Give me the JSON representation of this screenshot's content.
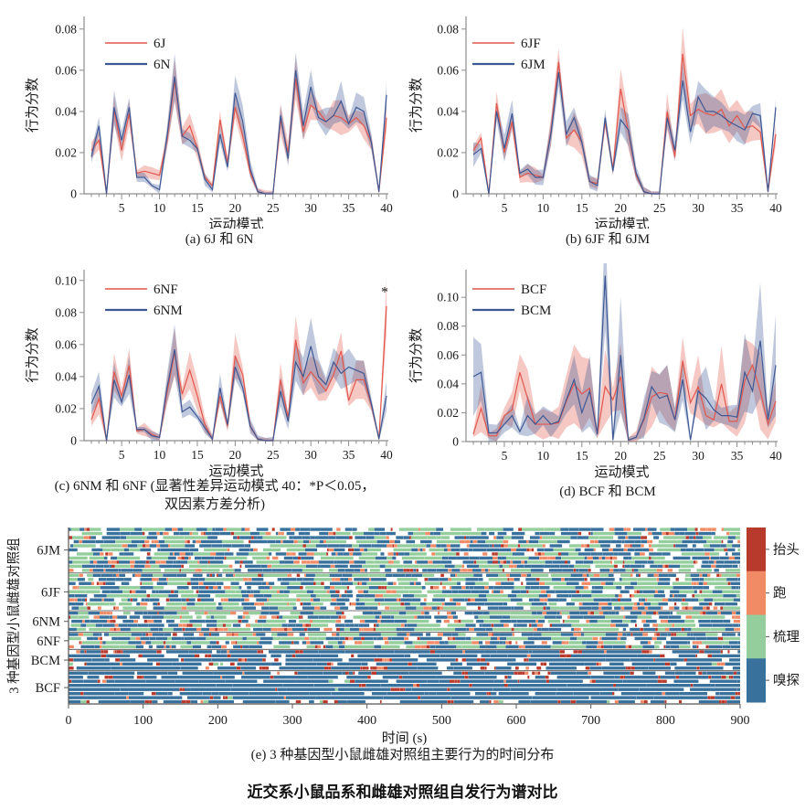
{
  "figure_title": "近交系小鼠品系和雌雄对照组自发行为谱对比",
  "colors": {
    "red_line": "#E2574C",
    "blue_line": "#3E5894",
    "axis": "#8C8C8C",
    "separator": "#4a4a4a",
    "behavior_head": "#B73A2D",
    "behavior_run": "#F08B66",
    "behavior_groom": "#94CE9D",
    "behavior_sniff": "#39719D"
  },
  "chart_data": [
    {
      "id": "a",
      "type": "line",
      "caption": "(a) 6J 和 6N",
      "xlabel": "运动模式",
      "ylabel": "行为分数",
      "xlim": [
        1,
        40
      ],
      "x_major_ticks": [
        5,
        10,
        15,
        20,
        25,
        30,
        35,
        40
      ],
      "ylim": [
        0,
        0.083
      ],
      "yticks": [
        0,
        0.02,
        0.04,
        0.06,
        0.08
      ],
      "grid": false,
      "legend_position": "top-left",
      "band_factor": 0.1,
      "series": [
        {
          "name": "6J",
          "color": "#E2574C",
          "values": [
            0.021,
            0.026,
            0.0,
            0.041,
            0.021,
            0.039,
            0.01,
            0.011,
            0.01,
            0.009,
            0.026,
            0.055,
            0.028,
            0.033,
            0.022,
            0.008,
            0.004,
            0.036,
            0.015,
            0.042,
            0.028,
            0.01,
            0.001,
            0.0,
            0.0,
            0.036,
            0.02,
            0.056,
            0.03,
            0.043,
            0.04,
            0.035,
            0.038,
            0.037,
            0.034,
            0.037,
            0.033,
            0.025,
            0.001,
            0.037
          ]
        },
        {
          "name": "6N",
          "color": "#3E5894",
          "values": [
            0.018,
            0.033,
            0.0,
            0.042,
            0.026,
            0.042,
            0.008,
            0.008,
            0.004,
            0.002,
            0.028,
            0.057,
            0.028,
            0.026,
            0.022,
            0.007,
            0.002,
            0.029,
            0.013,
            0.049,
            0.035,
            0.012,
            0.001,
            0.0,
            0.0,
            0.038,
            0.017,
            0.06,
            0.033,
            0.052,
            0.037,
            0.035,
            0.038,
            0.045,
            0.034,
            0.042,
            0.04,
            0.025,
            0.001,
            0.048
          ]
        }
      ]
    },
    {
      "id": "b",
      "type": "line",
      "caption": "(b) 6JF 和 6JM",
      "xlabel": "运动模式",
      "ylabel": "行为分数",
      "xlim": [
        1,
        40
      ],
      "x_major_ticks": [
        5,
        10,
        15,
        20,
        25,
        30,
        35,
        40
      ],
      "ylim": [
        0,
        0.083
      ],
      "yticks": [
        0,
        0.02,
        0.04,
        0.06,
        0.08
      ],
      "grid": false,
      "legend_position": "top-left",
      "band_factor": 0.12,
      "series": [
        {
          "name": "6JF",
          "color": "#E2574C",
          "values": [
            0.021,
            0.027,
            0.0,
            0.044,
            0.02,
            0.035,
            0.008,
            0.01,
            0.009,
            0.008,
            0.03,
            0.064,
            0.027,
            0.031,
            0.025,
            0.006,
            0.005,
            0.035,
            0.012,
            0.051,
            0.03,
            0.009,
            0.001,
            0.0,
            0.0,
            0.04,
            0.018,
            0.068,
            0.038,
            0.041,
            0.039,
            0.038,
            0.041,
            0.033,
            0.038,
            0.032,
            0.033,
            0.03,
            0.001,
            0.029
          ]
        },
        {
          "name": "6JM",
          "color": "#3E5894",
          "values": [
            0.019,
            0.022,
            0.0,
            0.04,
            0.022,
            0.039,
            0.01,
            0.012,
            0.008,
            0.008,
            0.029,
            0.059,
            0.029,
            0.037,
            0.025,
            0.006,
            0.004,
            0.037,
            0.011,
            0.036,
            0.031,
            0.01,
            0.001,
            0.0,
            0.0,
            0.037,
            0.021,
            0.055,
            0.03,
            0.047,
            0.04,
            0.04,
            0.038,
            0.035,
            0.033,
            0.031,
            0.039,
            0.038,
            0.001,
            0.042
          ]
        }
      ]
    },
    {
      "id": "c",
      "type": "line",
      "caption_lines": [
        "(c) 6NM 和 6NF (显著性差异运动模式 40：*P＜0.05，",
        "双因素方差分析)"
      ],
      "xlabel": "运动模式",
      "ylabel": "行为分数",
      "xlim": [
        1,
        40
      ],
      "x_major_ticks": [
        5,
        10,
        15,
        20,
        25,
        30,
        35,
        40
      ],
      "ylim": [
        0,
        0.105
      ],
      "yticks": [
        0,
        0.02,
        0.04,
        0.06,
        0.08,
        0.1
      ],
      "grid": false,
      "legend_position": "top-left",
      "band_factor": 0.16,
      "annotation": {
        "text": "*",
        "x": 40,
        "y": 0.09
      },
      "series": [
        {
          "name": "6NF",
          "color": "#E2574C",
          "values": [
            0.013,
            0.026,
            0.0,
            0.043,
            0.028,
            0.047,
            0.006,
            0.007,
            0.004,
            0.002,
            0.03,
            0.055,
            0.029,
            0.044,
            0.028,
            0.01,
            0.001,
            0.028,
            0.009,
            0.053,
            0.041,
            0.009,
            0.001,
            0.0,
            0.0,
            0.038,
            0.014,
            0.063,
            0.036,
            0.043,
            0.037,
            0.031,
            0.041,
            0.056,
            0.025,
            0.038,
            0.038,
            0.022,
            0.001,
            0.084
          ]
        },
        {
          "name": "6NM",
          "color": "#3E5894",
          "values": [
            0.023,
            0.034,
            0.0,
            0.038,
            0.024,
            0.041,
            0.007,
            0.007,
            0.003,
            0.002,
            0.033,
            0.057,
            0.018,
            0.021,
            0.015,
            0.008,
            0.001,
            0.033,
            0.01,
            0.046,
            0.033,
            0.009,
            0.001,
            0.0,
            0.0,
            0.031,
            0.012,
            0.049,
            0.04,
            0.059,
            0.04,
            0.035,
            0.049,
            0.042,
            0.046,
            0.044,
            0.042,
            0.023,
            0.001,
            0.028
          ]
        }
      ]
    },
    {
      "id": "d",
      "type": "line",
      "caption": "(d) BCF 和 BCM",
      "xlabel": "运动模式",
      "ylabel": "行为分数",
      "xlim": [
        1,
        40
      ],
      "x_major_ticks": [
        5,
        10,
        15,
        20,
        25,
        30,
        35,
        40
      ],
      "ylim": [
        0,
        0.119
      ],
      "yticks": [
        0,
        0.02,
        0.04,
        0.06,
        0.08,
        0.1
      ],
      "grid": false,
      "legend_position": "top-left",
      "band_factor": 0.42,
      "series": [
        {
          "name": "BCF",
          "color": "#E2574C",
          "values": [
            0.005,
            0.023,
            0.004,
            0.004,
            0.018,
            0.022,
            0.048,
            0.03,
            0.012,
            0.012,
            0.012,
            0.013,
            0.028,
            0.04,
            0.033,
            0.037,
            0.005,
            0.038,
            0.029,
            0.045,
            0.001,
            0.003,
            0.015,
            0.031,
            0.034,
            0.033,
            0.015,
            0.056,
            0.027,
            0.038,
            0.018,
            0.015,
            0.04,
            0.014,
            0.014,
            0.042,
            0.053,
            0.035,
            0.012,
            0.028
          ]
        },
        {
          "name": "BCM",
          "color": "#3E5894",
          "values": [
            0.045,
            0.048,
            0.006,
            0.006,
            0.012,
            0.018,
            0.007,
            0.018,
            0.012,
            0.018,
            0.012,
            0.014,
            0.029,
            0.043,
            0.02,
            0.035,
            0.005,
            0.115,
            0.001,
            0.06,
            0.001,
            0.003,
            0.016,
            0.038,
            0.03,
            0.032,
            0.015,
            0.043,
            0.001,
            0.035,
            0.03,
            0.022,
            0.018,
            0.018,
            0.017,
            0.048,
            0.035,
            0.07,
            0.015,
            0.053
          ]
        }
      ]
    },
    {
      "id": "e",
      "type": "heatmap",
      "caption": "(e) 3 种基因型小鼠雌雄对照组主要行为的时间分布",
      "xlabel": "时间 (s)",
      "ylabel": "3 种基因型小鼠雌雄对照组",
      "xlim": [
        0,
        900
      ],
      "x_ticks": [
        0,
        100,
        200,
        300,
        400,
        500,
        600,
        700,
        800,
        900
      ],
      "groups": [
        {
          "label": "6JM",
          "rows": 11,
          "profile": "inbred"
        },
        {
          "label": "6JF",
          "rows": 9,
          "profile": "inbred"
        },
        {
          "label": "6NM",
          "rows": 5,
          "profile": "inbred"
        },
        {
          "label": "6NF",
          "rows": 4,
          "profile": "inbred"
        },
        {
          "label": "BCM",
          "rows": 5,
          "profile": "bc"
        },
        {
          "label": "BCF",
          "rows": 8,
          "profile": "bc"
        }
      ],
      "profiles": {
        "inbred": {
          "weights": {
            "gap": 0.2,
            "sniff": 0.38,
            "groom": 0.17,
            "run": 0.17,
            "head": 0.08
          },
          "lengths": {
            "gap": [
              2,
              10
            ],
            "sniff": [
              3,
              18
            ],
            "groom": [
              6,
              32
            ],
            "run": [
              2,
              8
            ],
            "head": [
              2,
              5
            ]
          }
        },
        "bc": {
          "weights": {
            "gap": 0.24,
            "sniff": 0.4,
            "groom": 0.02,
            "run": 0.06,
            "head": 0.28
          },
          "lengths": {
            "gap": [
              2,
              12
            ],
            "sniff": [
              4,
              48
            ],
            "groom": [
              3,
              8
            ],
            "run": [
              2,
              6
            ],
            "head": [
              2,
              7
            ]
          }
        }
      },
      "legend": [
        {
          "label": "抬头",
          "color": "#B73A2D"
        },
        {
          "label": "跑",
          "color": "#F08B66"
        },
        {
          "label": "梳理",
          "color": "#94CE9D"
        },
        {
          "label": "嗅探",
          "color": "#39719D"
        }
      ],
      "legend_position": "right-colorbar"
    }
  ]
}
